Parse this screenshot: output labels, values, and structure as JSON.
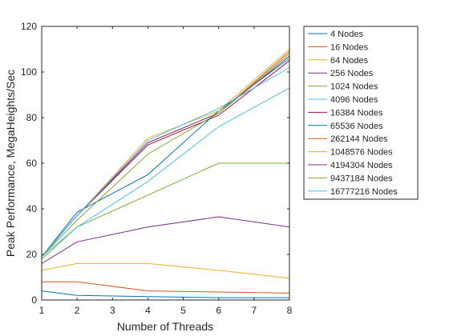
{
  "chart_data": {
    "type": "line",
    "title": "",
    "xlabel": "Number of Threads",
    "ylabel": "Peak Performance, MegaHeights/Sec",
    "xlim": [
      1,
      8
    ],
    "ylim": [
      0,
      120
    ],
    "xticks": [
      1,
      2,
      3,
      4,
      5,
      6,
      7,
      8
    ],
    "yticks": [
      0,
      20,
      40,
      60,
      80,
      100,
      120
    ],
    "grid": false,
    "legend_position": "outside-right",
    "x": [
      1,
      2,
      4,
      6,
      8
    ],
    "series": [
      {
        "name": "4 Nodes",
        "color": "#0072BD",
        "values": [
          4,
          2,
          1.5,
          1,
          1
        ]
      },
      {
        "name": "16 Nodes",
        "color": "#D95319",
        "values": [
          8,
          8,
          4,
          3.5,
          3
        ]
      },
      {
        "name": "64 Nodes",
        "color": "#EDB120",
        "values": [
          13,
          16,
          16,
          13,
          9.5
        ]
      },
      {
        "name": "256 Nodes",
        "color": "#7E2F8E",
        "values": [
          16,
          25.5,
          32,
          36.5,
          32
        ]
      },
      {
        "name": "1024 Nodes",
        "color": "#77AC30",
        "values": [
          18,
          32,
          46,
          60,
          60
        ]
      },
      {
        "name": "4096 Nodes",
        "color": "#4DBEEE",
        "values": [
          19,
          32,
          52,
          76,
          93
        ]
      },
      {
        "name": "16384 Nodes",
        "color": "#A2142F",
        "values": [
          19,
          37,
          68,
          81,
          105
        ]
      },
      {
        "name": "65536 Nodes",
        "color": "#0072BD",
        "values": [
          19,
          38.5,
          55,
          83,
          106
        ]
      },
      {
        "name": "262144 Nodes",
        "color": "#D95319",
        "values": [
          19,
          37,
          69,
          82,
          109
        ]
      },
      {
        "name": "1048576 Nodes",
        "color": "#EDB120",
        "values": [
          19,
          37,
          71,
          83,
          110
        ]
      },
      {
        "name": "4194304 Nodes",
        "color": "#7E2F8E",
        "values": [
          19,
          37,
          69,
          82,
          107
        ]
      },
      {
        "name": "9437184 Nodes",
        "color": "#77AC30",
        "values": [
          19,
          35,
          64,
          82,
          108
        ]
      },
      {
        "name": "16777216 Nodes",
        "color": "#4DBEEE",
        "values": [
          19,
          37,
          70,
          84,
          102
        ]
      }
    ]
  }
}
